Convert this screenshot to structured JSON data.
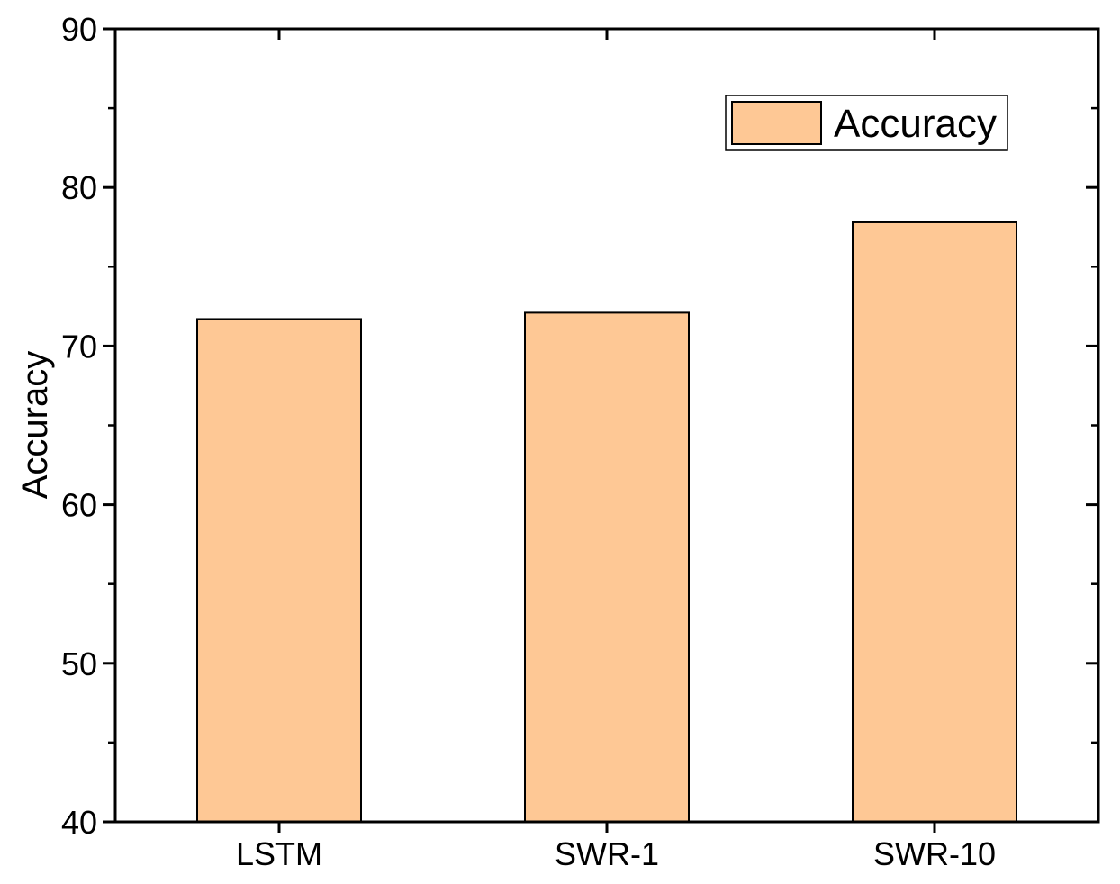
{
  "chart_data": {
    "type": "bar",
    "categories": [
      "LSTM",
      "SWR-1",
      "SWR-10"
    ],
    "series": [
      {
        "name": "Accuracy",
        "values": [
          71.7,
          72.1,
          77.8
        ],
        "color": "#fec895"
      }
    ],
    "ylabel": "Accuracy",
    "xlabel": "",
    "ylim": [
      40,
      90
    ],
    "yticks": [
      40,
      50,
      60,
      70,
      80,
      90
    ],
    "grid": false,
    "legend_position": "top-right",
    "bar_edge_color": "#000000",
    "axis_color": "#000000"
  }
}
